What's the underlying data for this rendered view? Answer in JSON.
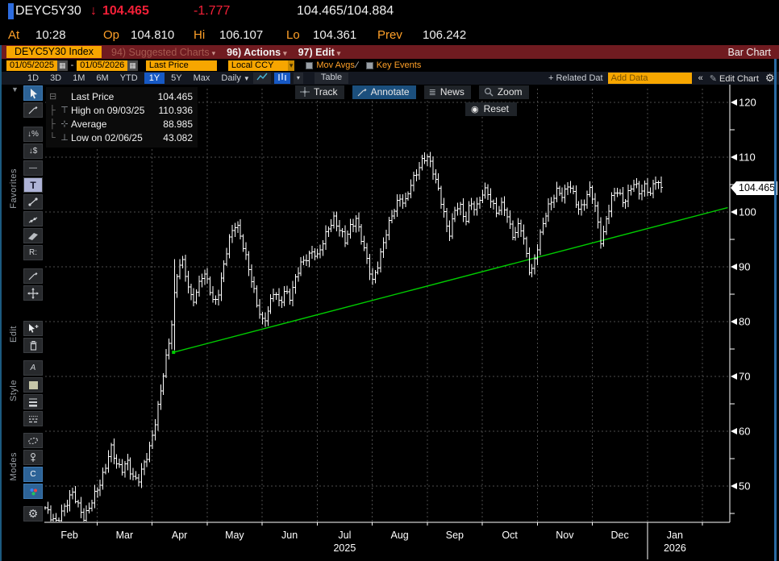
{
  "colors": {
    "amber": "#f7a600",
    "amber_text": "#ffa028",
    "red": "#f32038",
    "maroon": "#701b20",
    "blue": "#1759c4",
    "green": "#00cc00",
    "steel": "#2d6397",
    "bar": "#ffffff",
    "grid": "#4c4c4c"
  },
  "quote": {
    "ticker": "DEYC5Y30",
    "arrow": "↓",
    "last": "104.465",
    "change": "-1.777",
    "bid_ask": "104.465/104.884",
    "at_label": "At",
    "time": "10:28",
    "open_label": "Op",
    "open": "104.810",
    "high_label": "Hi",
    "high": "106.107",
    "low_label": "Lo",
    "low": "104.361",
    "prev_label": "Prev",
    "prev": "106.242"
  },
  "menu_bar": {
    "ticker_box": "DEYC5Y30 Index",
    "suggested": "94) Suggested Charts",
    "actions": "96) Actions",
    "edit": "97) Edit",
    "chart_type": "Bar Chart"
  },
  "settings_bar": {
    "date_from": "01/05/2025",
    "dash": "-",
    "date_to": "01/05/2026",
    "field": "Last Price",
    "currency": "Local CCY",
    "mov_avgs": "Mov Avgs",
    "key_events": "Key Events"
  },
  "range_bar": {
    "ranges": [
      "1D",
      "3D",
      "1M",
      "6M",
      "YTD",
      "1Y",
      "5Y",
      "Max"
    ],
    "selected": "1Y",
    "period": "Daily",
    "table": "Table",
    "related": "+ Related Dat",
    "add_data": "Add Data",
    "collapse": "«",
    "edit_chart": "Edit Chart"
  },
  "chart_toolbar": {
    "track": "Track",
    "annotate": "Annotate",
    "news": "News",
    "zoom": "Zoom",
    "reset": "Reset",
    "selected": "Annotate"
  },
  "legend": {
    "rows": [
      {
        "marker": "swatch",
        "label": "Last Price",
        "value": "104.465"
      },
      {
        "marker": "high",
        "label": "High on 09/03/25",
        "value": "110.936"
      },
      {
        "marker": "avg",
        "label": "Average",
        "value": "88.985"
      },
      {
        "marker": "low",
        "label": "Low on 02/06/25",
        "value": "43.082"
      }
    ]
  },
  "sidebar": {
    "groups": [
      {
        "label": "",
        "items": [
          {
            "icon": "cursor",
            "name": "select-cursor-tool",
            "selected": true
          },
          {
            "icon": "draw-line",
            "name": "draw-line-tool"
          }
        ]
      },
      {
        "label": "Favorites",
        "items": [
          {
            "icon": "percent-change",
            "name": "percent-change-tool"
          },
          {
            "icon": "dollar-change",
            "name": "dollar-change-tool"
          },
          {
            "icon": "horizontal-line",
            "name": "horizontal-line-tool"
          },
          {
            "icon": "text",
            "name": "text-tool",
            "style": "lav"
          },
          {
            "icon": "trend-segment",
            "name": "trend-segment-tool"
          },
          {
            "icon": "trend-segment-2",
            "name": "trend-segment-2-tool"
          },
          {
            "icon": "channel",
            "name": "channel-tool"
          },
          {
            "icon": "regression",
            "name": "regression-tool"
          }
        ]
      },
      {
        "label": "",
        "items": [
          {
            "icon": "annotate-pencil",
            "name": "annotate-pencil-tool"
          },
          {
            "icon": "move",
            "name": "move-tool"
          }
        ]
      },
      {
        "label": "Edit",
        "items": [
          {
            "icon": "cursor-plus",
            "name": "multi-select-tool"
          },
          {
            "icon": "trash",
            "name": "delete-tool"
          }
        ]
      },
      {
        "label": "Style",
        "items": [
          {
            "icon": "font",
            "name": "font-style-tool"
          },
          {
            "icon": "color-swatch",
            "name": "color-swatch-tool"
          },
          {
            "icon": "line-width",
            "name": "line-width-tool"
          },
          {
            "icon": "line-style",
            "name": "line-style-tool"
          }
        ]
      },
      {
        "label": "Modes",
        "items": [
          {
            "icon": "lasso-ellipse",
            "name": "lasso-mode-tool"
          },
          {
            "icon": "pin",
            "name": "pin-mode-tool"
          },
          {
            "icon": "curve",
            "name": "curve-mode-tool",
            "selected": true
          },
          {
            "icon": "multicolor",
            "name": "multicolor-mode-tool",
            "selected": true
          }
        ]
      },
      {
        "label": "",
        "items": [
          {
            "icon": "settings-gear",
            "name": "chart-settings-gear"
          }
        ]
      }
    ]
  },
  "axis_tag": "104.465",
  "chart_data": {
    "type": "bar",
    "title": "DEYC5Y30 Index Last Price, Daily, 1Y Bar Chart",
    "xlabel": "",
    "ylabel": "",
    "ylim": [
      43,
      122
    ],
    "yticks_major": [
      120,
      110,
      100,
      90,
      80,
      70,
      60,
      50
    ],
    "yticks_minor": [
      115,
      105,
      95,
      85,
      75,
      65,
      55,
      45
    ],
    "months": [
      "Feb",
      "Mar",
      "Apr",
      "May",
      "Jun",
      "Jul",
      "Aug",
      "Sep",
      "Oct",
      "Nov",
      "Dec",
      "Jan"
    ],
    "year_labels": [
      {
        "text": "2025",
        "month_index": 5
      },
      {
        "text": "2026",
        "month_index": 11
      }
    ],
    "grid": true,
    "legend_position": "top-left",
    "bar_color": "#ffffff",
    "last_price": 104.465,
    "high": {
      "date": "09/03/25",
      "value": 110.936
    },
    "average": 88.985,
    "low": {
      "date": "02/06/25",
      "value": 43.082
    },
    "trendline": {
      "color": "#00cc00",
      "start": {
        "x_frac": 0.197,
        "value": 74.4
      },
      "end": {
        "x_frac": 0.997,
        "value": 100.8
      }
    },
    "close_path": [
      46.0,
      44.0,
      43.3,
      45.5,
      47.0,
      48.5,
      46.5,
      44.5,
      46.0,
      48.0,
      50.0,
      53.5,
      57.5,
      54.0,
      52.5,
      55.0,
      52.0,
      50.5,
      53.5,
      56.5,
      61.0,
      66.0,
      72.0,
      78.0,
      88.0,
      91.5,
      87.0,
      83.5,
      86.5,
      89.0,
      86.5,
      83.0,
      86.5,
      91.5,
      95.5,
      98.0,
      95.5,
      91.0,
      86.5,
      82.5,
      80.0,
      82.5,
      85.5,
      83.0,
      86.0,
      84.5,
      88.0,
      90.5,
      92.0,
      93.0,
      91.5,
      94.5,
      97.5,
      99.0,
      96.5,
      94.5,
      97.5,
      99.0,
      95.0,
      91.0,
      87.5,
      90.5,
      94.0,
      97.5,
      100.5,
      103.0,
      101.5,
      104.5,
      107.0,
      109.5,
      110.3,
      107.5,
      104.5,
      101.0,
      95.5,
      99.5,
      101.5,
      98.5,
      102.0,
      100.0,
      103.0,
      104.5,
      101.5,
      99.5,
      101.5,
      98.5,
      95.5,
      98.0,
      93.5,
      88.5,
      92.5,
      96.5,
      100.0,
      102.5,
      104.5,
      102.5,
      105.0,
      103.0,
      100.5,
      102.0,
      104.0,
      100.5,
      94.5,
      99.0,
      102.5,
      104.0,
      102.0,
      103.5,
      105.0,
      103.5,
      105.0,
      103.5,
      105.5,
      104.465
    ]
  }
}
